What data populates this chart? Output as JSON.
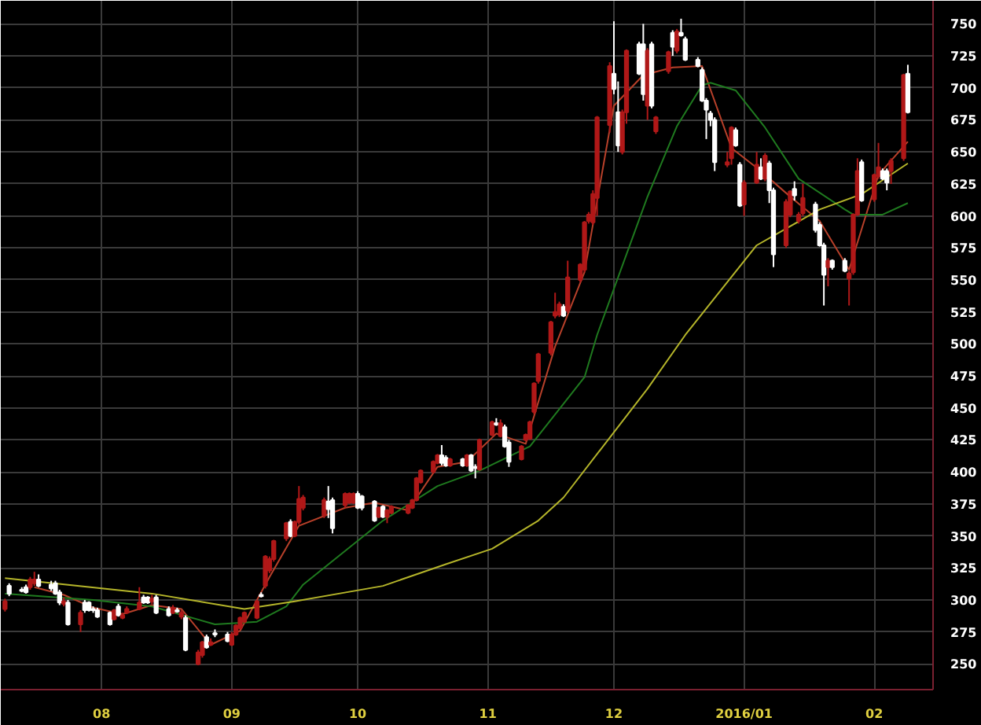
{
  "chart_data": {
    "type": "candlestick",
    "x": [
      "2015-07-09",
      "2015-07-10",
      "2015-07-13",
      "2015-07-14",
      "2015-07-15",
      "2015-07-16",
      "2015-07-17",
      "2015-07-20",
      "2015-07-21",
      "2015-07-22",
      "2015-07-23",
      "2015-07-24",
      "2015-07-27",
      "2015-07-28",
      "2015-07-29",
      "2015-07-30",
      "2015-07-31",
      "2015-08-03",
      "2015-08-04",
      "2015-08-05",
      "2015-08-06",
      "2015-08-07",
      "2015-08-10",
      "2015-08-11",
      "2015-08-12",
      "2015-08-13",
      "2015-08-14",
      "2015-08-17",
      "2015-08-18",
      "2015-08-19",
      "2015-08-20",
      "2015-08-21",
      "2015-08-24",
      "2015-08-25",
      "2015-08-26",
      "2015-08-27",
      "2015-08-28",
      "2015-08-31",
      "2015-09-01",
      "2015-09-02",
      "2015-09-03",
      "2015-09-04",
      "2015-09-07",
      "2015-09-08",
      "2015-09-09",
      "2015-09-10",
      "2015-09-11",
      "2015-09-14",
      "2015-09-15",
      "2015-09-16",
      "2015-09-17",
      "2015-09-18",
      "2015-09-23",
      "2015-09-24",
      "2015-09-25",
      "2015-09-28",
      "2015-09-29",
      "2015-09-30",
      "2015-10-01",
      "2015-10-02",
      "2015-10-05",
      "2015-10-06",
      "2015-10-07",
      "2015-10-08",
      "2015-10-09",
      "2015-10-13",
      "2015-10-14",
      "2015-10-15",
      "2015-10-16",
      "2015-10-19",
      "2015-10-20",
      "2015-10-21",
      "2015-10-22",
      "2015-10-23",
      "2015-10-26",
      "2015-10-27",
      "2015-10-28",
      "2015-10-29",
      "2015-10-30",
      "2015-11-02",
      "2015-11-03",
      "2015-11-04",
      "2015-11-05",
      "2015-11-06",
      "2015-11-09",
      "2015-11-10",
      "2015-11-11",
      "2015-11-12",
      "2015-11-13",
      "2015-11-16",
      "2015-11-17",
      "2015-11-18",
      "2015-11-19",
      "2015-11-20",
      "2015-11-23",
      "2015-11-24",
      "2015-11-25",
      "2015-11-26",
      "2015-11-27",
      "2015-11-30",
      "2015-12-01",
      "2015-12-02",
      "2015-12-03",
      "2015-12-04",
      "2015-12-07",
      "2015-12-08",
      "2015-12-09",
      "2015-12-10",
      "2015-12-11",
      "2015-12-14",
      "2015-12-15",
      "2015-12-16",
      "2015-12-17",
      "2015-12-18",
      "2015-12-21",
      "2015-12-22",
      "2015-12-23",
      "2015-12-24",
      "2015-12-25",
      "2015-12-28",
      "2015-12-29",
      "2015-12-30",
      "2015-12-31",
      "2016-01-01",
      "2016-01-04",
      "2016-01-05",
      "2016-01-06",
      "2016-01-07",
      "2016-01-08",
      "2016-01-11",
      "2016-01-12",
      "2016-01-13",
      "2016-01-14",
      "2016-01-15",
      "2016-01-18",
      "2016-01-19",
      "2016-01-20",
      "2016-01-21",
      "2016-01-22",
      "2016-01-25",
      "2016-01-26",
      "2016-01-27",
      "2016-01-28",
      "2016-01-29",
      "2016-02-01",
      "2016-02-02",
      "2016-02-03",
      "2016-02-04",
      "2016-02-05",
      "2016-02-08",
      "2016-02-09"
    ],
    "ohlc": [
      [
        293,
        301,
        291,
        299
      ],
      [
        311,
        313,
        303,
        305
      ],
      [
        308,
        310,
        306,
        307
      ],
      [
        310,
        312,
        305,
        306
      ],
      [
        310,
        318,
        308,
        316
      ],
      [
        313,
        322,
        311,
        316
      ],
      [
        316,
        320,
        310,
        311
      ],
      [
        312,
        315,
        307,
        309
      ],
      [
        313,
        315,
        304,
        305
      ],
      [
        306,
        308,
        296,
        298
      ],
      [
        297,
        302,
        295,
        299
      ],
      [
        298,
        300,
        280,
        281
      ],
      [
        281,
        292,
        275,
        290
      ],
      [
        298,
        300,
        290,
        292
      ],
      [
        298,
        299,
        291,
        292
      ],
      [
        293,
        295,
        290,
        292
      ],
      [
        292,
        294,
        286,
        287
      ],
      [
        290,
        291,
        280,
        281
      ],
      [
        285,
        293,
        284,
        292
      ],
      [
        295,
        297,
        287,
        288
      ],
      [
        286,
        290,
        285,
        288
      ],
      [
        290,
        295,
        289,
        293
      ],
      [
        293,
        310,
        292,
        298
      ],
      [
        302,
        304,
        297,
        298
      ],
      [
        302,
        303,
        297,
        298
      ],
      [
        299,
        304,
        297,
        301
      ],
      [
        302,
        304,
        289,
        290
      ],
      [
        293,
        295,
        287,
        288
      ],
      [
        290,
        296,
        289,
        294
      ],
      [
        292,
        294,
        290,
        291
      ],
      [
        287,
        292,
        285,
        290
      ],
      [
        286,
        288,
        260,
        261
      ],
      [
        250,
        261,
        249,
        259
      ],
      [
        257,
        268,
        255,
        267
      ],
      [
        271,
        273,
        262,
        263
      ],
      [
        265,
        270,
        264,
        267
      ],
      [
        274,
        277,
        271,
        273
      ],
      [
        273,
        275,
        267,
        268
      ],
      [
        265,
        275,
        264,
        273
      ],
      [
        273,
        281,
        272,
        280
      ],
      [
        278,
        287,
        277,
        286
      ],
      [
        283,
        291,
        282,
        290
      ],
      [
        286,
        300,
        285,
        299
      ],
      [
        303,
        306,
        302,
        304
      ],
      [
        311,
        335,
        309,
        334
      ],
      [
        323,
        334,
        321,
        332
      ],
      [
        332,
        347,
        330,
        346
      ],
      [
        348,
        361,
        346,
        360
      ],
      [
        361,
        363,
        349,
        350
      ],
      [
        350,
        362,
        349,
        361
      ],
      [
        361,
        389,
        359,
        379
      ],
      [
        372,
        382,
        370,
        380
      ],
      [
        366,
        380,
        364,
        378
      ],
      [
        377,
        389,
        364,
        371
      ],
      [
        378,
        380,
        352,
        356
      ],
      [
        374,
        384,
        372,
        383
      ],
      [
        376,
        384,
        375,
        383
      ],
      [
        376,
        384,
        375,
        383
      ],
      [
        383,
        385,
        371,
        372
      ],
      [
        381,
        382,
        370,
        372
      ],
      [
        377,
        378,
        361,
        362
      ],
      [
        365,
        373,
        364,
        372
      ],
      [
        373,
        374,
        364,
        365
      ],
      [
        365,
        371,
        360,
        370
      ],
      [
        368,
        374,
        367,
        373
      ],
      [
        368,
        375,
        367,
        374
      ],
      [
        372,
        379,
        371,
        378
      ],
      [
        378,
        396,
        377,
        395
      ],
      [
        392,
        402,
        391,
        401
      ],
      [
        400,
        409,
        399,
        408
      ],
      [
        407,
        414,
        406,
        413
      ],
      [
        413,
        421,
        405,
        407
      ],
      [
        411,
        413,
        404,
        405
      ],
      [
        405,
        411,
        404,
        410
      ],
      [
        410,
        411,
        404,
        405
      ],
      [
        405,
        414,
        404,
        413
      ],
      [
        413,
        414,
        400,
        401
      ],
      [
        404,
        406,
        395,
        403
      ],
      [
        402,
        426,
        401,
        425
      ],
      [
        429,
        440,
        428,
        439
      ],
      [
        438,
        442,
        436,
        437
      ],
      [
        428,
        441,
        427,
        438
      ],
      [
        435,
        437,
        419,
        420
      ],
      [
        423,
        425,
        404,
        408
      ],
      [
        410,
        421,
        409,
        420
      ],
      [
        425,
        430,
        424,
        429
      ],
      [
        426,
        440,
        425,
        439
      ],
      [
        447,
        470,
        445,
        469
      ],
      [
        471,
        493,
        469,
        492
      ],
      [
        493,
        518,
        491,
        517
      ],
      [
        522,
        540,
        520,
        525
      ],
      [
        523,
        533,
        521,
        531
      ],
      [
        529,
        531,
        521,
        522
      ],
      [
        526,
        565,
        524,
        552
      ],
      [
        550,
        563,
        548,
        562
      ],
      [
        558,
        596,
        556,
        595
      ],
      [
        596,
        603,
        594,
        601
      ],
      [
        595,
        620,
        593,
        617
      ],
      [
        614,
        678,
        600,
        677
      ],
      [
        671,
        720,
        665,
        717
      ],
      [
        711,
        752,
        695,
        699
      ],
      [
        681,
        705,
        650,
        655
      ],
      [
        650,
        683,
        648,
        681
      ],
      [
        681,
        730,
        672,
        729
      ],
      [
        734,
        736,
        710,
        711
      ],
      [
        734,
        750,
        690,
        695
      ],
      [
        686,
        731,
        675,
        729
      ],
      [
        734,
        736,
        684,
        686
      ],
      [
        666,
        678,
        664,
        677
      ],
      [
        713,
        729,
        711,
        728
      ],
      [
        743,
        745,
        725,
        732
      ],
      [
        729,
        746,
        727,
        744
      ],
      [
        743,
        754,
        740,
        741
      ],
      [
        738,
        740,
        721,
        722
      ],
      [
        722,
        724,
        716,
        717
      ],
      [
        714,
        716,
        689,
        690
      ],
      [
        690,
        692,
        660,
        683
      ],
      [
        680,
        682,
        670,
        675
      ],
      [
        675,
        677,
        635,
        642
      ],
      [
        640,
        650,
        638,
        642
      ],
      [
        645,
        670,
        640,
        669
      ],
      [
        667,
        669,
        654,
        655
      ],
      [
        640,
        642,
        607,
        608
      ],
      [
        609,
        628,
        600,
        626
      ],
      [
        626,
        650,
        625,
        640
      ],
      [
        638,
        645,
        628,
        629
      ],
      [
        629,
        649,
        627,
        647
      ],
      [
        641,
        643,
        610,
        620
      ],
      [
        620,
        622,
        560,
        570
      ],
      [
        577,
        613,
        575,
        611
      ],
      [
        601,
        620,
        599,
        619
      ],
      [
        621,
        627,
        612,
        616
      ],
      [
        596,
        603,
        594,
        601
      ],
      [
        602,
        625,
        600,
        614
      ],
      [
        609,
        611,
        587,
        589
      ],
      [
        593,
        595,
        576,
        577
      ],
      [
        577,
        579,
        530,
        554
      ],
      [
        560,
        567,
        545,
        565
      ],
      [
        565,
        566,
        558,
        560
      ],
      [
        565,
        567,
        556,
        557
      ],
      [
        551,
        557,
        530,
        555
      ],
      [
        556,
        602,
        554,
        601
      ],
      [
        601,
        645,
        600,
        635
      ],
      [
        642,
        644,
        611,
        612
      ],
      [
        613,
        633,
        611,
        632
      ],
      [
        631,
        657,
        629,
        638
      ],
      [
        635,
        637,
        628,
        629
      ],
      [
        635,
        637,
        620,
        626
      ],
      [
        635,
        645,
        625,
        643
      ],
      [
        645,
        711,
        643,
        710
      ],
      [
        711,
        718,
        680,
        681
      ]
    ],
    "colors": [
      "#b01818",
      "#ffffff",
      "#ffffff",
      "#ffffff",
      "#b01818",
      "#b01818",
      "#ffffff",
      "#ffffff",
      "#ffffff",
      "#ffffff",
      "#b01818",
      "#ffffff",
      "#b01818",
      "#ffffff",
      "#ffffff",
      "#ffffff",
      "#ffffff",
      "#ffffff",
      "#b01818",
      "#ffffff",
      "#b01818",
      "#b01818",
      "#b01818",
      "#ffffff",
      "#ffffff",
      "#b01818",
      "#ffffff",
      "#ffffff",
      "#b01818",
      "#ffffff",
      "#b01818",
      "#ffffff",
      "#b01818",
      "#b01818",
      "#ffffff",
      "#b01818",
      "#ffffff",
      "#ffffff",
      "#b01818",
      "#b01818",
      "#b01818",
      "#b01818",
      "#b01818",
      "#ffffff",
      "#b01818",
      "#b01818",
      "#b01818",
      "#b01818",
      "#ffffff",
      "#b01818",
      "#b01818",
      "#b01818",
      "#b01818",
      "#ffffff",
      "#ffffff",
      "#b01818",
      "#b01818",
      "#b01818",
      "#ffffff",
      "#ffffff",
      "#ffffff",
      "#b01818",
      "#ffffff",
      "#b01818",
      "#b01818",
      "#b01818",
      "#b01818",
      "#b01818",
      "#b01818",
      "#b01818",
      "#b01818",
      "#ffffff",
      "#ffffff",
      "#b01818",
      "#ffffff",
      "#b01818",
      "#ffffff",
      "#ffffff",
      "#b01818",
      "#b01818",
      "#ffffff",
      "#b01818",
      "#ffffff",
      "#ffffff",
      "#b01818",
      "#b01818",
      "#b01818",
      "#b01818",
      "#b01818",
      "#b01818",
      "#b01818",
      "#b01818",
      "#ffffff",
      "#b01818",
      "#b01818",
      "#b01818",
      "#b01818",
      "#b01818",
      "#b01818",
      "#b01818",
      "#ffffff",
      "#ffffff",
      "#b01818",
      "#b01818",
      "#ffffff",
      "#ffffff",
      "#b01818",
      "#ffffff",
      "#b01818",
      "#b01818",
      "#ffffff",
      "#b01818",
      "#ffffff",
      "#ffffff",
      "#ffffff",
      "#ffffff",
      "#ffffff",
      "#ffffff",
      "#ffffff",
      "#b01818",
      "#b01818",
      "#ffffff",
      "#ffffff",
      "#b01818",
      "#b01818",
      "#ffffff",
      "#b01818",
      "#ffffff",
      "#ffffff",
      "#b01818",
      "#b01818",
      "#ffffff",
      "#b01818",
      "#b01818",
      "#ffffff",
      "#ffffff",
      "#ffffff",
      "#b01818",
      "#ffffff",
      "#ffffff",
      "#b01818",
      "#b01818",
      "#b01818",
      "#ffffff",
      "#b01818",
      "#b01818",
      "#ffffff",
      "#ffffff",
      "#b01818",
      "#b01818",
      "#ffffff"
    ],
    "series": [
      {
        "type": "line",
        "color": "#b8402a",
        "x": [
          "2015-07-16",
          "2015-07-23",
          "2015-07-30",
          "2015-08-06",
          "2015-08-13",
          "2015-08-20",
          "2015-08-27",
          "2015-09-03",
          "2015-09-10",
          "2015-09-17",
          "2015-09-28",
          "2015-10-05",
          "2015-10-13",
          "2015-10-20",
          "2015-10-27",
          "2015-11-03",
          "2015-11-10",
          "2015-11-17",
          "2015-11-24",
          "2015-12-01",
          "2015-12-08",
          "2015-12-15",
          "2015-12-22",
          "2015-12-29",
          "2016-01-05",
          "2016-01-12",
          "2016-01-19",
          "2016-01-26",
          "2016-02-02",
          "2016-02-09"
        ],
        "values": [
          310,
          304,
          294,
          289,
          296,
          293,
          265,
          276,
          318,
          358,
          372,
          376,
          370,
          404,
          408,
          430,
          422,
          498,
          556,
          686,
          710,
          716,
          717,
          653,
          635,
          615,
          596,
          558,
          632,
          658
        ]
      },
      {
        "type": "line",
        "color": "#1f7a1f",
        "x": [
          "2015-07-09",
          "2015-07-30",
          "2015-08-13",
          "2015-08-28",
          "2015-09-07",
          "2015-09-14",
          "2015-09-18",
          "2015-10-07",
          "2015-10-20",
          "2015-10-30",
          "2015-11-11",
          "2015-11-24",
          "2015-11-27",
          "2015-12-09",
          "2015-12-16",
          "2015-12-22",
          "2015-12-24",
          "2015-12-30",
          "2016-01-06",
          "2016-01-14",
          "2016-01-25",
          "2016-01-27",
          "2016-02-03",
          "2016-02-09"
        ],
        "values": [
          305,
          300,
          295,
          281,
          283,
          295,
          312,
          362,
          389,
          401,
          420,
          474,
          507,
          615,
          670,
          702,
          704,
          698,
          669,
          629,
          605,
          601,
          601,
          610
        ]
      },
      {
        "type": "line",
        "color": "#b5b52a",
        "x": [
          "2015-07-09",
          "2015-08-13",
          "2015-09-04",
          "2015-09-16",
          "2015-10-07",
          "2015-10-22",
          "2015-11-02",
          "2015-11-13",
          "2015-11-19",
          "2015-12-09",
          "2015-12-18",
          "2016-01-04",
          "2016-01-19",
          "2016-01-29",
          "2016-02-09"
        ],
        "values": [
          317,
          305,
          293,
          299,
          311,
          328,
          340,
          362,
          380,
          465,
          507,
          577,
          605,
          617,
          641
        ]
      }
    ],
    "xlim": [
      "2015-07-08",
      "2016-02-15"
    ],
    "xticks": [
      {
        "value": "2015-08",
        "label": "08"
      },
      {
        "value": "2015-09",
        "label": "09"
      },
      {
        "value": "2015-10",
        "label": "10"
      },
      {
        "value": "2015-11",
        "label": "11"
      },
      {
        "value": "2015-12",
        "label": "12"
      },
      {
        "value": "2016-01",
        "label": "2016/01"
      },
      {
        "value": "2016-02",
        "label": "02"
      }
    ],
    "ylim": [
      230,
      768
    ],
    "yticks": [
      250,
      275,
      300,
      325,
      350,
      375,
      400,
      425,
      450,
      475,
      500,
      525,
      550,
      575,
      600,
      625,
      650,
      675,
      700,
      725,
      750
    ],
    "grid": true
  }
}
